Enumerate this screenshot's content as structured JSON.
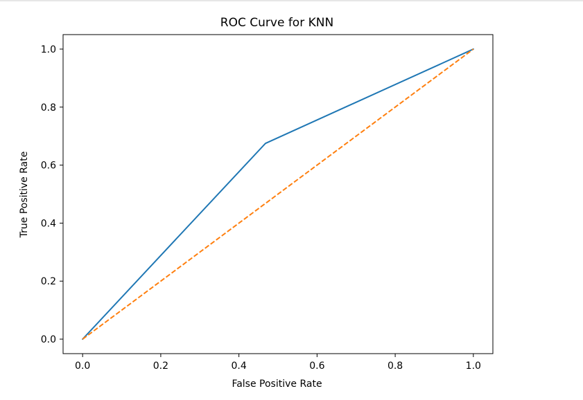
{
  "chart_data": {
    "type": "line",
    "title": "ROC Curve for KNN",
    "xlabel": "False Positive Rate",
    "ylabel": "True Positive Rate",
    "xlim": [
      -0.05,
      1.05
    ],
    "ylim": [
      -0.05,
      1.05
    ],
    "x_ticks": [
      0.0,
      0.2,
      0.4,
      0.6,
      0.8,
      1.0
    ],
    "x_tick_labels": [
      "0.0",
      "0.2",
      "0.4",
      "0.6",
      "0.8",
      "1.0"
    ],
    "y_ticks": [
      0.0,
      0.2,
      0.4,
      0.6,
      0.8,
      1.0
    ],
    "y_tick_labels": [
      "0.0",
      "0.2",
      "0.4",
      "0.6",
      "0.8",
      "1.0"
    ],
    "grid": false,
    "series": [
      {
        "x": [
          0.0,
          0.468,
          1.0
        ],
        "y": [
          0.0,
          0.675,
          1.0
        ],
        "color": "#1f77b4",
        "style": "solid"
      },
      {
        "x": [
          0.0,
          1.0
        ],
        "y": [
          0.0,
          1.0
        ],
        "color": "#ff7f0e",
        "style": "dashed"
      }
    ]
  }
}
